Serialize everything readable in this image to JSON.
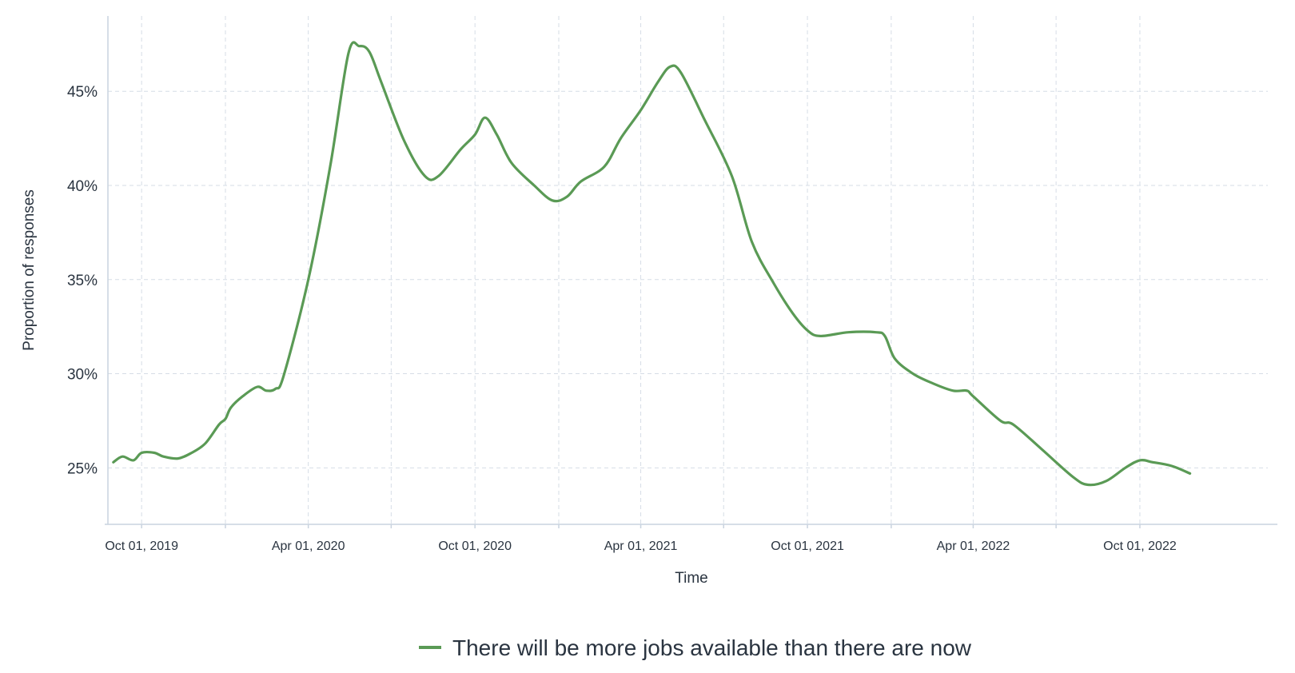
{
  "chart_data": {
    "type": "line",
    "xlabel": "Time",
    "ylabel": "Proportion of responses",
    "ylim": [
      22,
      49
    ],
    "xlim": [
      "2019-08-25",
      "2023-03-01"
    ],
    "grid": true,
    "legend_position": "bottom-center",
    "y_ticks": [
      {
        "value": 25,
        "label": "25%"
      },
      {
        "value": 30,
        "label": "30%"
      },
      {
        "value": 35,
        "label": "35%"
      },
      {
        "value": 40,
        "label": "40%"
      },
      {
        "value": 45,
        "label": "45%"
      }
    ],
    "x_ticks": [
      {
        "date": "2019-10-01",
        "label": "Oct 01, 2019"
      },
      {
        "date": "2020-04-01",
        "label": "Apr 01, 2020"
      },
      {
        "date": "2020-10-01",
        "label": "Oct 01, 2020"
      },
      {
        "date": "2021-04-01",
        "label": "Apr 01, 2021"
      },
      {
        "date": "2021-10-01",
        "label": "Oct 01, 2021"
      },
      {
        "date": "2022-04-01",
        "label": "Apr 01, 2022"
      },
      {
        "date": "2022-10-01",
        "label": "Oct 01, 2022"
      }
    ],
    "minor_x_gridlines": [
      "2020-01-01",
      "2020-07-01",
      "2021-01-01",
      "2021-07-01",
      "2022-01-01",
      "2022-07-01"
    ],
    "series": [
      {
        "name": "There will be more jobs available than there are now",
        "color": "#5a9a55",
        "points": [
          [
            "2019-08-31",
            25.3
          ],
          [
            "2019-09-10",
            25.6
          ],
          [
            "2019-09-22",
            25.4
          ],
          [
            "2019-10-01",
            25.8
          ],
          [
            "2019-10-15",
            25.8
          ],
          [
            "2019-10-25",
            25.6
          ],
          [
            "2019-11-10",
            25.5
          ],
          [
            "2019-11-25",
            25.8
          ],
          [
            "2019-12-10",
            26.3
          ],
          [
            "2019-12-25",
            27.3
          ],
          [
            "2020-01-01",
            27.6
          ],
          [
            "2020-01-07",
            28.2
          ],
          [
            "2020-01-20",
            28.8
          ],
          [
            "2020-02-05",
            29.3
          ],
          [
            "2020-02-15",
            29.1
          ],
          [
            "2020-02-25",
            29.2
          ],
          [
            "2020-03-05",
            29.9
          ],
          [
            "2020-04-01",
            35.0
          ],
          [
            "2020-04-25",
            41.0
          ],
          [
            "2020-05-15",
            47.0
          ],
          [
            "2020-05-27",
            47.4
          ],
          [
            "2020-06-07",
            47.1
          ],
          [
            "2020-06-20",
            45.5
          ],
          [
            "2020-07-15",
            42.4
          ],
          [
            "2020-08-07",
            40.5
          ],
          [
            "2020-08-22",
            40.5
          ],
          [
            "2020-09-15",
            41.9
          ],
          [
            "2020-10-01",
            42.7
          ],
          [
            "2020-10-12",
            43.6
          ],
          [
            "2020-10-25",
            42.7
          ],
          [
            "2020-11-10",
            41.2
          ],
          [
            "2020-12-05",
            40.0
          ],
          [
            "2020-12-25",
            39.2
          ],
          [
            "2021-01-10",
            39.4
          ],
          [
            "2021-01-25",
            40.2
          ],
          [
            "2021-02-20",
            41.0
          ],
          [
            "2021-03-10",
            42.5
          ],
          [
            "2021-04-01",
            44.0
          ],
          [
            "2021-04-20",
            45.5
          ],
          [
            "2021-05-03",
            46.3
          ],
          [
            "2021-05-15",
            46.0
          ],
          [
            "2021-06-10",
            43.5
          ],
          [
            "2021-07-10",
            40.5
          ],
          [
            "2021-08-01",
            37.0
          ],
          [
            "2021-08-25",
            34.8
          ],
          [
            "2021-09-15",
            33.2
          ],
          [
            "2021-10-01",
            32.3
          ],
          [
            "2021-10-15",
            32.0
          ],
          [
            "2021-11-15",
            32.2
          ],
          [
            "2021-12-15",
            32.2
          ],
          [
            "2021-12-25",
            32.0
          ],
          [
            "2022-01-05",
            30.8
          ],
          [
            "2022-01-25",
            30.0
          ],
          [
            "2022-02-15",
            29.5
          ],
          [
            "2022-03-10",
            29.1
          ],
          [
            "2022-03-25",
            29.1
          ],
          [
            "2022-04-01",
            28.8
          ],
          [
            "2022-05-01",
            27.5
          ],
          [
            "2022-05-15",
            27.3
          ],
          [
            "2022-06-15",
            26.0
          ],
          [
            "2022-07-20",
            24.5
          ],
          [
            "2022-08-05",
            24.1
          ],
          [
            "2022-08-25",
            24.3
          ],
          [
            "2022-09-15",
            25.0
          ],
          [
            "2022-10-01",
            25.4
          ],
          [
            "2022-10-15",
            25.3
          ],
          [
            "2022-11-05",
            25.1
          ],
          [
            "2022-11-25",
            24.7
          ]
        ]
      }
    ]
  }
}
